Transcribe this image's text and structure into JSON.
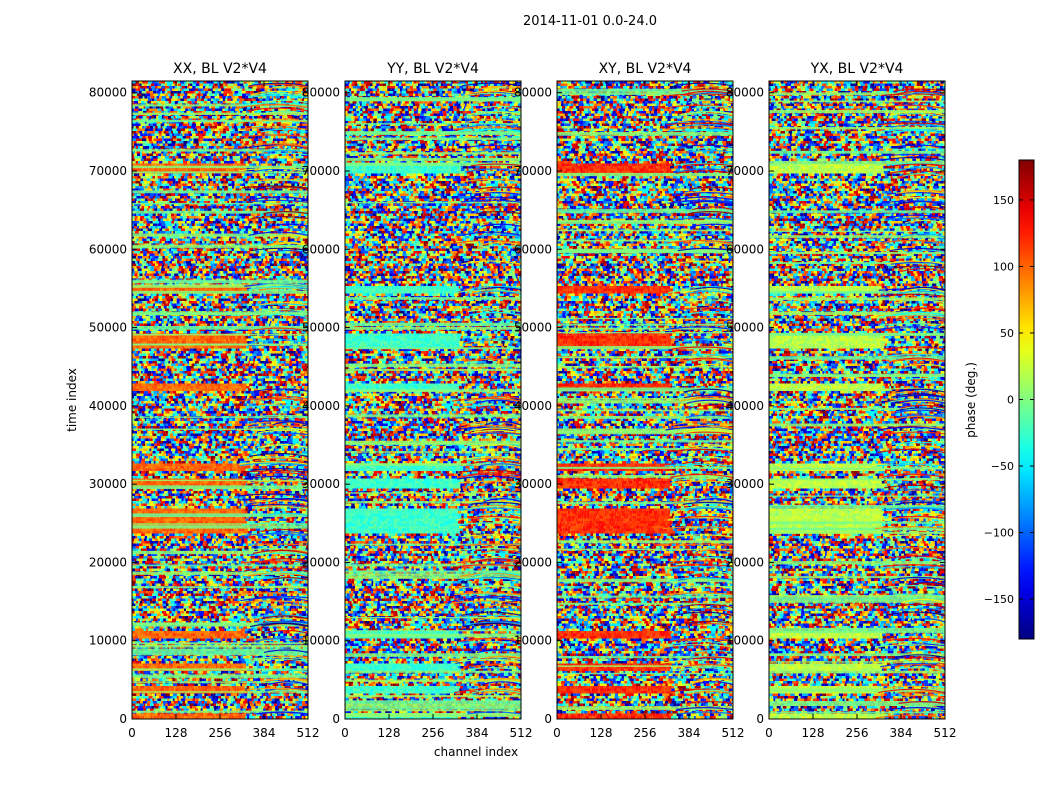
{
  "chart_data": {
    "type": "heatmap",
    "suptitle": "2014-11-01 0.0-24.0",
    "xlabel": "channel index",
    "ylabel": "time index",
    "xlim": [
      0,
      512
    ],
    "ylim": [
      0,
      81500
    ],
    "xticks": [
      0,
      128,
      256,
      384,
      512
    ],
    "yticks": [
      0,
      10000,
      20000,
      30000,
      40000,
      50000,
      60000,
      70000,
      80000
    ],
    "panels": [
      {
        "title": "XX, BL V2*V4",
        "bias": 100
      },
      {
        "title": "YY, BL V2*V4",
        "bias": -25
      },
      {
        "title": "XY, BL V2*V4",
        "bias": 120
      },
      {
        "title": "YX, BL V2*V4",
        "bias": 20
      }
    ],
    "colorbar": {
      "label": "phase (deg.)",
      "vmin": -180,
      "vmax": 180,
      "ticks": [
        -150,
        -100,
        -50,
        0,
        50,
        100,
        150
      ],
      "tick_labels": [
        "−150",
        "−100",
        "−50",
        "0",
        "50",
        "100",
        "150"
      ],
      "colormap": "jet"
    },
    "banded_time_ranges": [
      [
        0,
        900
      ],
      [
        3300,
        4400
      ],
      [
        6200,
        7300
      ],
      [
        10300,
        11400
      ],
      [
        24000,
        27200
      ],
      [
        29500,
        31000
      ],
      [
        31700,
        32800
      ],
      [
        42000,
        43100
      ],
      [
        47600,
        49300
      ],
      [
        54600,
        55600
      ],
      [
        69700,
        71000
      ]
    ]
  }
}
